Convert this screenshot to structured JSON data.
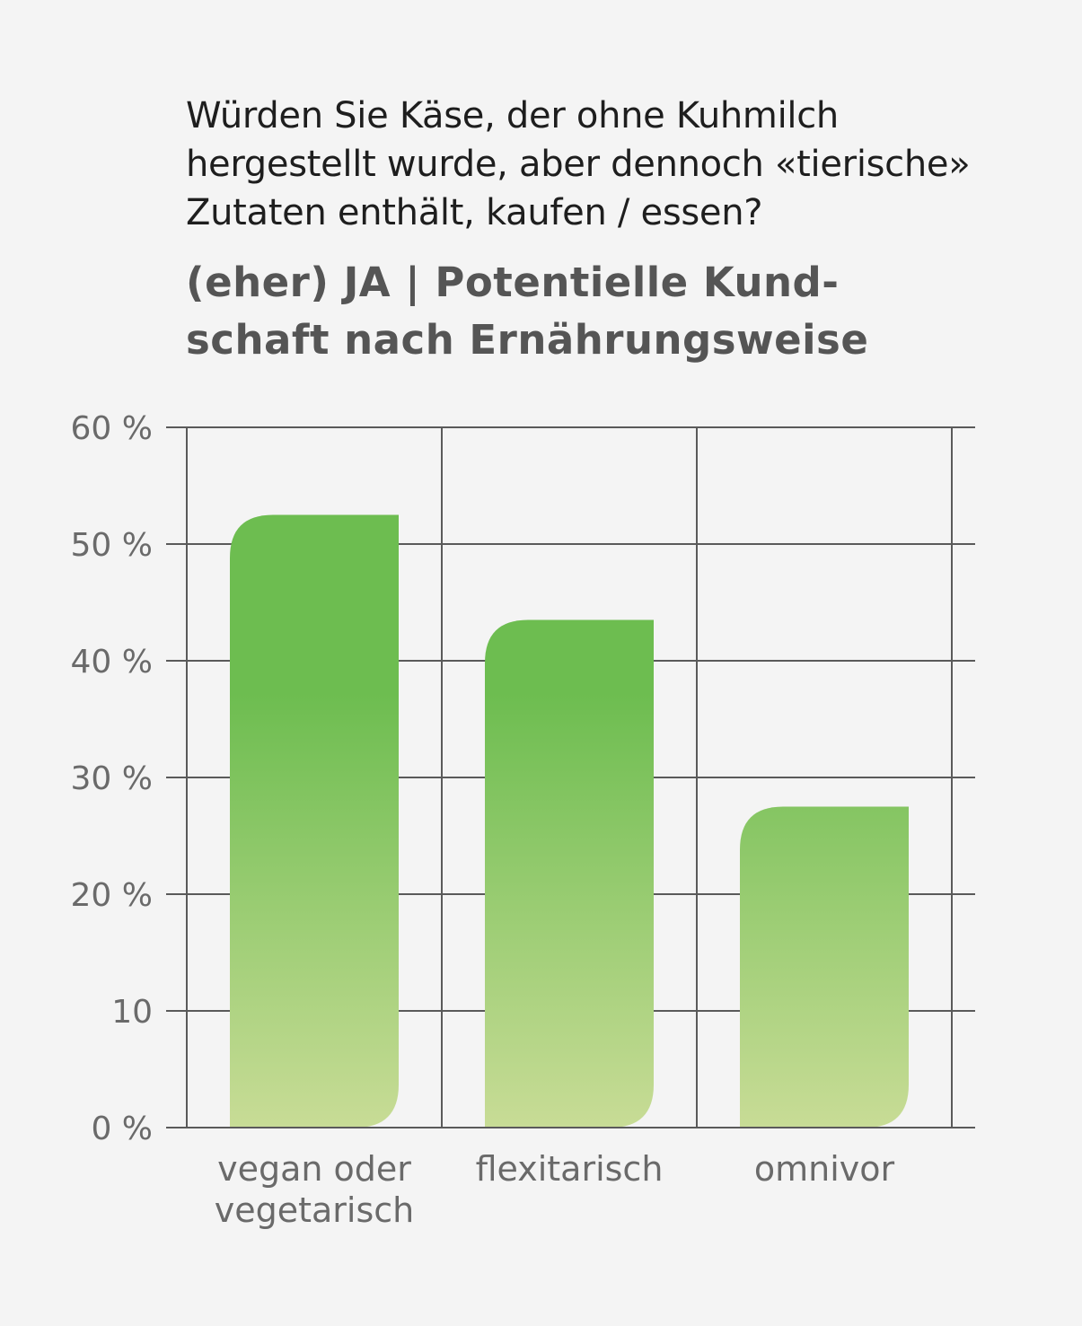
{
  "question": {
    "lines": [
      "Würden Sie Käse, der ohne Kuhmilch",
      "hergestellt wurde, aber dennoch «tierische»",
      "Zutaten enthält, kaufen / essen?"
    ]
  },
  "subtitle": {
    "lines": [
      "(eher) JA | Potentielle Kund-",
      "schaft nach Ernährungsweise"
    ]
  },
  "chart_data": {
    "type": "bar",
    "categories": [
      "vegan oder vegetarisch",
      "flexitarisch",
      "omnivor"
    ],
    "category_label_lines": [
      [
        "vegan oder",
        "vegetarisch"
      ],
      [
        "flexitarisch"
      ],
      [
        "omnivor"
      ]
    ],
    "values": [
      52.5,
      43.5,
      27.5
    ],
    "ylim": [
      0,
      60
    ],
    "yticks": [
      0,
      10,
      20,
      30,
      40,
      50,
      60
    ],
    "ytick_labels": [
      "0 %",
      "10",
      "20 %",
      "30 %",
      "40 %",
      "50 %",
      "60 %"
    ],
    "grid": true,
    "colors": {
      "bar_top": "#6dbd50",
      "bar_bottom": "#c8dc96",
      "grid": "#5a5a5a",
      "background": "#f4f4f4"
    }
  }
}
